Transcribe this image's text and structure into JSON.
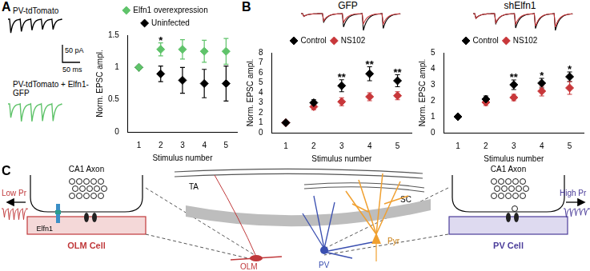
{
  "chart_data": [
    {
      "type": "scatter",
      "x_label": "Stimulus number",
      "y_label": "Norm. EPSC ampl.",
      "x": [
        1,
        2,
        3,
        4,
        5
      ],
      "xlim": [
        0.5,
        5.5
      ],
      "xticks": [
        1,
        2,
        3,
        4,
        5
      ],
      "ylim": [
        0,
        1.5
      ],
      "yticks": [
        0,
        0.5,
        1,
        1.5
      ],
      "grid": false,
      "legend": "top",
      "marker": "diamond",
      "series": [
        {
          "name": "Elfn1 overexpression",
          "color": "#5fc36a",
          "values": [
            1,
            1.28,
            1.28,
            1.25,
            1.25
          ],
          "errors": [
            0,
            0.1,
            0.15,
            0.17,
            0.2
          ]
        },
        {
          "name": "Uninfected",
          "color": "#000000",
          "values": [
            1,
            0.9,
            0.8,
            0.75,
            0.75
          ],
          "errors": [
            0,
            0.12,
            0.2,
            0.22,
            0.27
          ]
        }
      ],
      "annotations": [
        {
          "x": 2,
          "text": "*"
        }
      ]
    },
    {
      "type": "scatter",
      "title": "GFP",
      "x_label": "Stimulus number",
      "y_label": "Norm. EPSC ampl.",
      "x": [
        1,
        2,
        3,
        4,
        5
      ],
      "xlim": [
        0.5,
        5.5
      ],
      "xticks": [
        1,
        2,
        3,
        4,
        5
      ],
      "ylim": [
        0,
        8
      ],
      "yticks": [
        0,
        1,
        2,
        3,
        4,
        5,
        6,
        7,
        8
      ],
      "grid": false,
      "legend": "top",
      "marker": "diamond",
      "series": [
        {
          "name": "Control",
          "color": "#000000",
          "values": [
            1,
            3.0,
            4.7,
            5.9,
            5.2
          ],
          "errors": [
            0,
            0.3,
            0.6,
            0.7,
            0.6
          ]
        },
        {
          "name": "NS102",
          "color": "#c8373a",
          "values": [
            1,
            2.6,
            3.1,
            3.6,
            3.7
          ],
          "errors": [
            0,
            0.3,
            0.4,
            0.4,
            0.4
          ]
        }
      ],
      "annotations": [
        {
          "x": 3,
          "text": "**"
        },
        {
          "x": 4,
          "text": "**"
        },
        {
          "x": 5,
          "text": "**"
        }
      ]
    },
    {
      "type": "scatter",
      "title": "shElfn1",
      "x_label": "Stimulus number",
      "y_label": "Norm. EPSC ampl.",
      "x": [
        1,
        2,
        3,
        4,
        5
      ],
      "xlim": [
        0.5,
        5.5
      ],
      "xticks": [
        1,
        2,
        3,
        4,
        5
      ],
      "ylim": [
        0,
        5
      ],
      "yticks": [
        0,
        1,
        2,
        3,
        4,
        5
      ],
      "grid": false,
      "legend": "top",
      "marker": "diamond",
      "series": [
        {
          "name": "Control",
          "color": "#000000",
          "values": [
            1,
            2.1,
            3.0,
            3.1,
            3.5
          ],
          "errors": [
            0,
            0.2,
            0.3,
            0.3,
            0.3
          ]
        },
        {
          "name": "NS102",
          "color": "#c8373a",
          "values": [
            1,
            1.9,
            2.2,
            2.6,
            2.8
          ],
          "errors": [
            0,
            0.2,
            0.2,
            0.3,
            0.4
          ]
        }
      ],
      "annotations": [
        {
          "x": 3,
          "text": "**"
        },
        {
          "x": 4,
          "text": "*"
        },
        {
          "x": 5,
          "text": "*"
        }
      ]
    }
  ],
  "panels": {
    "A": {
      "label": "A",
      "traces": [
        {
          "label": "PV-tdTomato"
        },
        {
          "label": "PV-tdTomato + Elfn1-GFP"
        }
      ],
      "scale_bar": {
        "current": "50 pA",
        "time": "50 ms"
      }
    },
    "B": {
      "label": "B"
    },
    "C": {
      "label": "C",
      "left": {
        "axon": "CA1 Axon",
        "release": "Low Pr",
        "protein": "Elfn1",
        "cell": "OLM Cell"
      },
      "center": {
        "pathways": [
          "TA",
          "SC"
        ],
        "cells": [
          "OLM",
          "PV",
          "Pyr"
        ]
      },
      "right": {
        "axon": "CA1 Axon",
        "release": "High Pr",
        "cell": "PV Cell"
      }
    }
  }
}
